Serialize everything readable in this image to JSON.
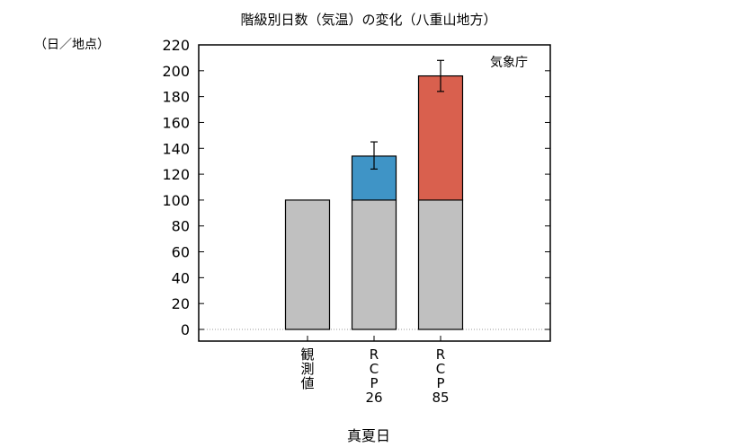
{
  "chart_data": {
    "type": "bar",
    "stacked": true,
    "title": "階級別日数（気温）の変化（八重山地方）",
    "ylabel": "（日／地点）",
    "xlabel": "真夏日",
    "source_label": "気象庁",
    "ylim": [
      0,
      220
    ],
    "yticks": [
      0,
      20,
      40,
      60,
      80,
      100,
      120,
      140,
      160,
      180,
      200,
      220
    ],
    "grid": false,
    "zero_line": "dotted",
    "categories": [
      {
        "label_lines": [
          "観",
          "測",
          "値"
        ],
        "base": 100,
        "increase": null,
        "err_low": null,
        "err_high": null
      },
      {
        "label_lines": [
          "R",
          "C",
          "P",
          "26"
        ],
        "base": 100,
        "increase": 34,
        "err_low": 124,
        "err_high": 145
      },
      {
        "label_lines": [
          "R",
          "C",
          "P",
          "85"
        ],
        "base": 100,
        "increase": 96,
        "err_low": 184,
        "err_high": 208
      }
    ],
    "colors": {
      "base": "#c0c0c0",
      "rcp26_increase": "#3f94c6",
      "rcp85_increase": "#d9604e"
    }
  }
}
